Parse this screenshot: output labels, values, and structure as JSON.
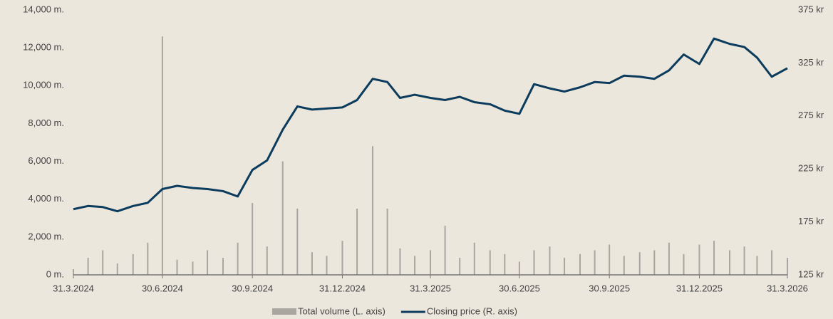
{
  "chart_data": {
    "type": "combo",
    "x": [
      "31.3.2024",
      "15.4.2024",
      "30.4.2024",
      "15.5.2024",
      "31.5.2024",
      "15.6.2024",
      "30.6.2024",
      "15.7.2024",
      "31.7.2024",
      "15.8.2024",
      "31.8.2024",
      "15.9.2024",
      "30.9.2024",
      "15.10.2024",
      "31.10.2024",
      "15.11.2024",
      "30.11.2024",
      "15.12.2024",
      "31.12.2024",
      "15.1.2025",
      "31.1.2025",
      "15.2.2025",
      "28.2.2025",
      "15.3.2025",
      "31.3.2025",
      "15.4.2025",
      "30.4.2025",
      "15.5.2025",
      "31.5.2025",
      "15.6.2025",
      "30.6.2025",
      "15.7.2025",
      "31.7.2025",
      "15.8.2025",
      "31.8.2025",
      "15.9.2025",
      "30.9.2025",
      "15.10.2025",
      "31.10.2025",
      "15.11.2025",
      "30.11.2025",
      "15.12.2025",
      "31.12.2025",
      "15.1.2026",
      "31.1.2026",
      "15.2.2026",
      "28.2.2026",
      "15.3.2026",
      "31.3.2026"
    ],
    "series": [
      {
        "name": "Total volume (L. axis)",
        "type": "bar",
        "axis": "y",
        "color": "#a9a6a0",
        "values": [
          300,
          900,
          1300,
          600,
          1100,
          1700,
          12600,
          800,
          700,
          1300,
          900,
          1700,
          3800,
          1500,
          6000,
          3500,
          1200,
          1000,
          1800,
          3500,
          6800,
          3500,
          1400,
          1000,
          1300,
          2600,
          900,
          1700,
          1300,
          1100,
          700,
          1300,
          1500,
          900,
          1100,
          1300,
          1600,
          1000,
          1200,
          1300,
          1700,
          1100,
          1600,
          1800,
          1300,
          1500,
          1000,
          1300,
          900
        ]
      },
      {
        "name": "Closing price (R. axis)",
        "type": "line",
        "axis": "y2",
        "color": "#0b3c5d",
        "values": [
          187,
          190,
          189,
          185,
          190,
          193,
          206,
          209,
          207,
          206,
          204,
          199,
          224,
          233,
          262,
          284,
          281,
          282,
          283,
          290,
          310,
          307,
          292,
          295,
          292,
          290,
          293,
          288,
          286,
          280,
          277,
          305,
          301,
          298,
          302,
          307,
          306,
          313,
          312,
          310,
          318,
          333,
          324,
          348,
          343,
          340,
          330,
          312,
          320
        ]
      }
    ],
    "xlim": [
      "31.3.2024",
      "31.3.2026"
    ],
    "xticks": [
      "31.3.2024",
      "30.6.2024",
      "30.9.2024",
      "31.12.2024",
      "31.3.2025",
      "30.6.2025",
      "30.9.2025",
      "31.12.2025",
      "31.3.2026"
    ],
    "ylim": [
      0,
      14000
    ],
    "yticks": [
      {
        "value": 0,
        "label": "0 m."
      },
      {
        "value": 2000,
        "label": "2,000 m."
      },
      {
        "value": 4000,
        "label": "4,000 m."
      },
      {
        "value": 6000,
        "label": "6,000 m."
      },
      {
        "value": 8000,
        "label": "8,000 m."
      },
      {
        "value": 10000,
        "label": "10,000 m."
      },
      {
        "value": 12000,
        "label": "12,000 m."
      },
      {
        "value": 14000,
        "label": "14,000 m."
      }
    ],
    "y2lim": [
      125,
      375
    ],
    "y2ticks": [
      {
        "value": 125,
        "label": "125 kr"
      },
      {
        "value": 175,
        "label": "175 kr"
      },
      {
        "value": 225,
        "label": "225 kr"
      },
      {
        "value": 275,
        "label": "275 kr"
      },
      {
        "value": 325,
        "label": "325 kr"
      },
      {
        "value": 375,
        "label": "375 kr"
      }
    ]
  }
}
